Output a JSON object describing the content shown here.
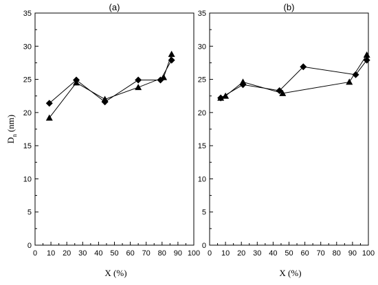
{
  "chart_data": [
    {
      "type": "line",
      "title": "(a)",
      "xlabel": "X (%)",
      "ylabel_main": "D",
      "ylabel_sub": "n",
      "ylabel_unit": "(nm)",
      "xlim": [
        0,
        100
      ],
      "ylim": [
        0,
        35
      ],
      "xticks": [
        "0",
        "10",
        "20",
        "30",
        "40",
        "50",
        "60",
        "70",
        "80",
        "90",
        "100"
      ],
      "yticks": [
        "0",
        "5",
        "10",
        "15",
        "20",
        "25",
        "30",
        "35"
      ],
      "grid": false,
      "series": [
        {
          "marker": "diamond",
          "x": [
            9,
            26,
            44,
            65,
            79,
            86
          ],
          "y": [
            21.4,
            24.9,
            21.6,
            24.9,
            24.9,
            27.9
          ]
        },
        {
          "marker": "triangle",
          "x": [
            9,
            26,
            44,
            65,
            81,
            86
          ],
          "y": [
            19.2,
            24.5,
            22.0,
            23.8,
            25.3,
            28.8
          ]
        }
      ]
    },
    {
      "type": "line",
      "title": "(b)",
      "xlabel": "X (%)",
      "ylabel_main": "",
      "ylabel_sub": "",
      "ylabel_unit": "",
      "xlim": [
        0,
        100
      ],
      "ylim": [
        0,
        35
      ],
      "xticks": [
        "0",
        "10",
        "20",
        "30",
        "40",
        "50",
        "60",
        "70",
        "80",
        "90",
        "100"
      ],
      "yticks": [
        "0",
        "5",
        "10",
        "15",
        "20",
        "25",
        "30",
        "35"
      ],
      "grid": false,
      "series": [
        {
          "marker": "diamond",
          "x": [
            7,
            21,
            44,
            59,
            92,
            99
          ],
          "y": [
            22.2,
            24.2,
            23.3,
            26.9,
            25.7,
            27.9
          ]
        },
        {
          "marker": "triangle",
          "x": [
            7,
            10,
            21,
            46,
            88,
            99
          ],
          "y": [
            22.2,
            22.5,
            24.6,
            22.9,
            24.6,
            28.7
          ]
        }
      ]
    }
  ]
}
